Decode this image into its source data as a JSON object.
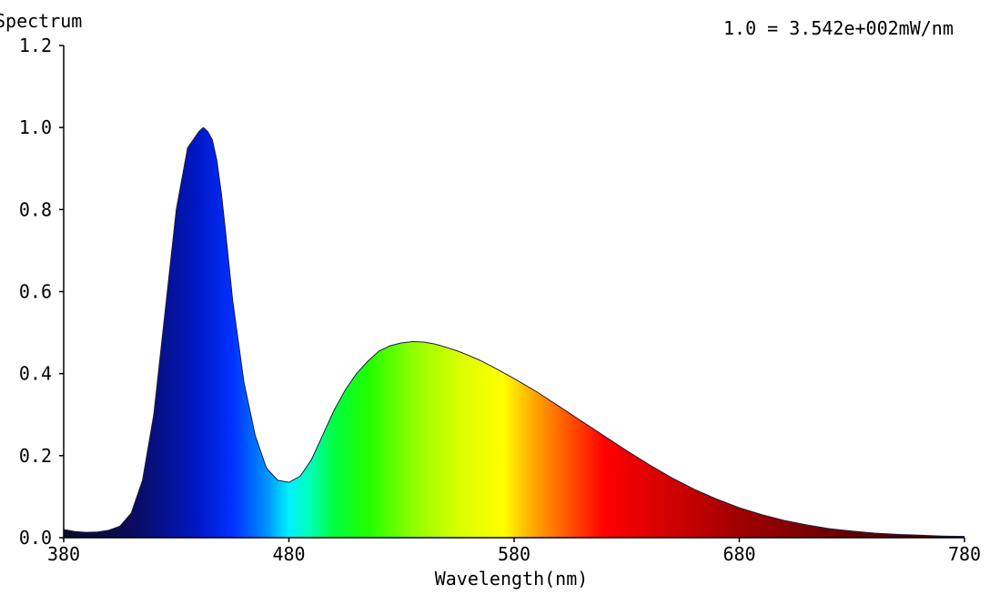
{
  "chart_data": {
    "type": "area",
    "title": "Spectrum",
    "scale_note": "1.0 = 3.542e+002mW/nm",
    "xlabel": "Wavelength(nm)",
    "ylabel": "",
    "xlim": [
      380,
      780
    ],
    "ylim": [
      0,
      1.2
    ],
    "x_ticks": [
      380,
      480,
      580,
      680,
      780
    ],
    "x_tick_labels": [
      "380",
      "480",
      "580",
      "680",
      "780"
    ],
    "y_ticks": [
      0.0,
      0.2,
      0.4,
      0.6,
      0.8,
      1.0,
      1.2
    ],
    "y_tick_labels": [
      "0.0",
      "0.2",
      "0.4",
      "0.6",
      "0.8",
      "1.0",
      "1.2"
    ],
    "grid": false,
    "fill": "wavelength-color-gradient",
    "series": [
      {
        "x": [
          380,
          385,
          390,
          395,
          400,
          405,
          410,
          415,
          420,
          425,
          430,
          435,
          440,
          442,
          444,
          445,
          446,
          448,
          450,
          452,
          455,
          460,
          465,
          470,
          475,
          480,
          485,
          490,
          495,
          500,
          505,
          510,
          515,
          520,
          525,
          530,
          535,
          540,
          545,
          550,
          555,
          560,
          565,
          570,
          575,
          580,
          585,
          590,
          595,
          600,
          605,
          610,
          615,
          620,
          625,
          630,
          635,
          640,
          650,
          660,
          670,
          680,
          690,
          700,
          710,
          720,
          730,
          740,
          750,
          760,
          770,
          780
        ],
        "values": [
          0.02,
          0.015,
          0.013,
          0.014,
          0.018,
          0.028,
          0.06,
          0.14,
          0.3,
          0.55,
          0.8,
          0.95,
          0.99,
          1.0,
          0.99,
          0.98,
          0.97,
          0.92,
          0.84,
          0.74,
          0.58,
          0.38,
          0.25,
          0.17,
          0.14,
          0.135,
          0.15,
          0.19,
          0.25,
          0.31,
          0.36,
          0.4,
          0.43,
          0.455,
          0.468,
          0.475,
          0.478,
          0.477,
          0.472,
          0.464,
          0.455,
          0.444,
          0.432,
          0.418,
          0.403,
          0.388,
          0.372,
          0.356,
          0.338,
          0.32,
          0.302,
          0.284,
          0.266,
          0.248,
          0.23,
          0.212,
          0.195,
          0.178,
          0.146,
          0.118,
          0.094,
          0.073,
          0.056,
          0.042,
          0.031,
          0.022,
          0.016,
          0.011,
          0.008,
          0.006,
          0.004,
          0.003
        ]
      }
    ]
  }
}
